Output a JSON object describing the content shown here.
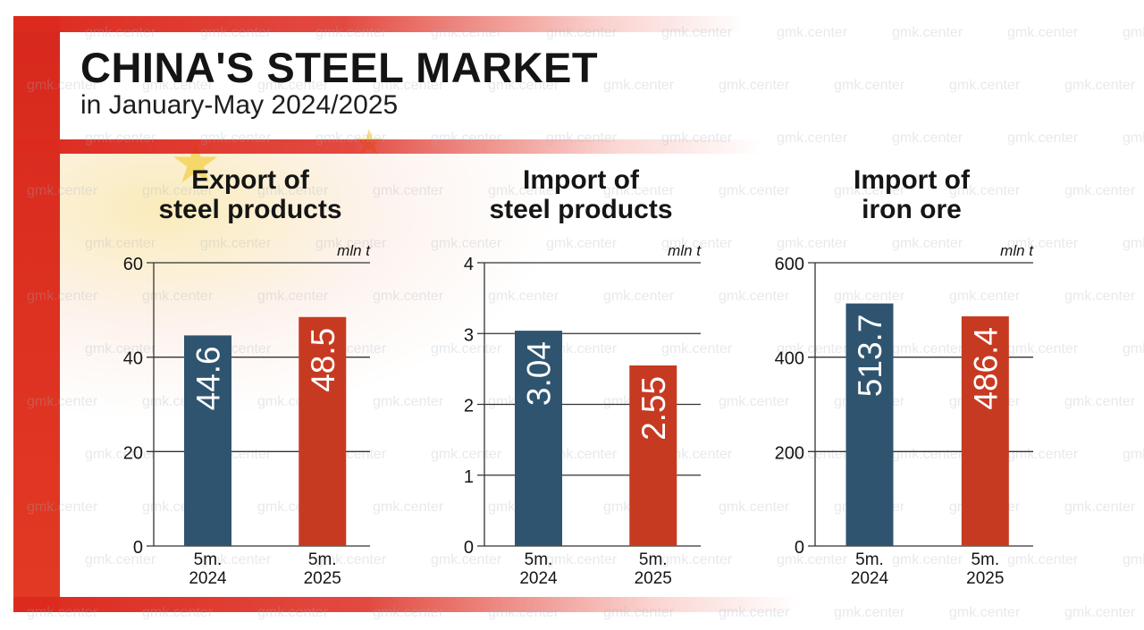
{
  "header": {
    "title": "CHINA'S STEEL MARKET",
    "subtitle": "in January-May 2024/2025"
  },
  "watermark_text": "gmk.center",
  "colors": {
    "bar_2024": "#2f5470",
    "bar_2025": "#c73a22",
    "flag_red": "#dd2a1f",
    "flag_yellow": "#f3c418",
    "grid": "#333333"
  },
  "chart_data": [
    {
      "type": "bar",
      "title_line1": "Export of",
      "title_line2": "steel products",
      "unit": "mln t",
      "categories": [
        [
          "5m.",
          "2024"
        ],
        [
          "5m.",
          "2025"
        ]
      ],
      "values": [
        44.6,
        48.5
      ],
      "value_labels": [
        "44.6",
        "48.5"
      ],
      "ylim": [
        0,
        60
      ],
      "yticks": [
        0,
        20,
        40,
        60
      ]
    },
    {
      "type": "bar",
      "title_line1": "Import of",
      "title_line2": "steel products",
      "unit": "mln t",
      "categories": [
        [
          "5m.",
          "2024"
        ],
        [
          "5m.",
          "2025"
        ]
      ],
      "values": [
        3.04,
        2.55
      ],
      "value_labels": [
        "3.04",
        "2.55"
      ],
      "ylim": [
        0,
        4
      ],
      "yticks": [
        0,
        1,
        2,
        3,
        4
      ]
    },
    {
      "type": "bar",
      "title_line1": "Import of",
      "title_line2": "iron ore",
      "unit": "mln t",
      "categories": [
        [
          "5m.",
          "2024"
        ],
        [
          "5m.",
          "2025"
        ]
      ],
      "values": [
        513.7,
        486.4
      ],
      "value_labels": [
        "513.7",
        "486.4"
      ],
      "ylim": [
        0,
        600
      ],
      "yticks": [
        0,
        200,
        400,
        600
      ]
    }
  ]
}
